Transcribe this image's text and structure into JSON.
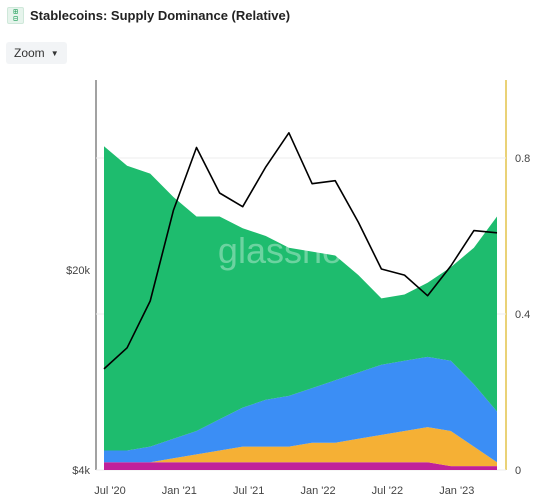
{
  "header": {
    "app_icon": "chart-grid-icon",
    "title": "Stablecoins: Supply Dominance (Relative)"
  },
  "toolbar": {
    "zoom_label": "Zoom",
    "zoom_caret_icon": "chevron-down-icon"
  },
  "watermark": "glassnode",
  "chart_data": {
    "type": "area",
    "stacked": true,
    "x_ticks": [
      "Jul '20",
      "Jan '21",
      "Jul '21",
      "Jan '22",
      "Jul '22",
      "Jan '23"
    ],
    "y_left": {
      "ticks": [
        "$4k",
        "$20k"
      ],
      "scale": "log"
    },
    "y_right": {
      "ticks": [
        "0",
        "0.4",
        "0.8"
      ],
      "range": [
        0,
        1
      ]
    },
    "x": [
      "Jul '20",
      "Sep '20",
      "Nov '20",
      "Jan '21",
      "Mar '21",
      "May '21",
      "Jul '21",
      "Sep '21",
      "Nov '21",
      "Jan '22",
      "Mar '22",
      "May '22",
      "Jul '22",
      "Sep '22",
      "Nov '22",
      "Jan '23",
      "Mar '23",
      "May '23"
    ],
    "series": [
      {
        "color": "#8e1e5a",
        "values": [
          0.0,
          0.0,
          0.0,
          0.0,
          0.0,
          0.0,
          0.0,
          0.0,
          0.0,
          0.0,
          0.0,
          0.0,
          0.0,
          0.0,
          0.0,
          0.0,
          0.0,
          0.0
        ]
      },
      {
        "color": "#c0219a",
        "values": [
          0.02,
          0.02,
          0.02,
          0.02,
          0.02,
          0.02,
          0.02,
          0.02,
          0.02,
          0.02,
          0.02,
          0.02,
          0.02,
          0.02,
          0.02,
          0.01,
          0.01,
          0.01
        ]
      },
      {
        "color": "#f5b035",
        "values": [
          0.0,
          0.0,
          0.0,
          0.01,
          0.02,
          0.03,
          0.04,
          0.04,
          0.04,
          0.05,
          0.05,
          0.06,
          0.07,
          0.08,
          0.09,
          0.09,
          0.05,
          0.01
        ]
      },
      {
        "color": "#3b8ef5",
        "values": [
          0.03,
          0.03,
          0.04,
          0.05,
          0.06,
          0.08,
          0.1,
          0.12,
          0.13,
          0.14,
          0.16,
          0.17,
          0.18,
          0.18,
          0.18,
          0.18,
          0.16,
          0.13
        ]
      },
      {
        "color": "#1ebc6e",
        "values": [
          0.78,
          0.73,
          0.7,
          0.62,
          0.55,
          0.52,
          0.46,
          0.42,
          0.38,
          0.35,
          0.32,
          0.25,
          0.17,
          0.17,
          0.19,
          0.24,
          0.35,
          0.5
        ]
      }
    ],
    "price_line": {
      "color": "#000000",
      "values": [
        9100,
        10800,
        15800,
        33000,
        55000,
        38000,
        34000,
        47000,
        62000,
        41000,
        42000,
        30000,
        20500,
        19500,
        16500,
        21000,
        28000,
        27500
      ]
    }
  }
}
